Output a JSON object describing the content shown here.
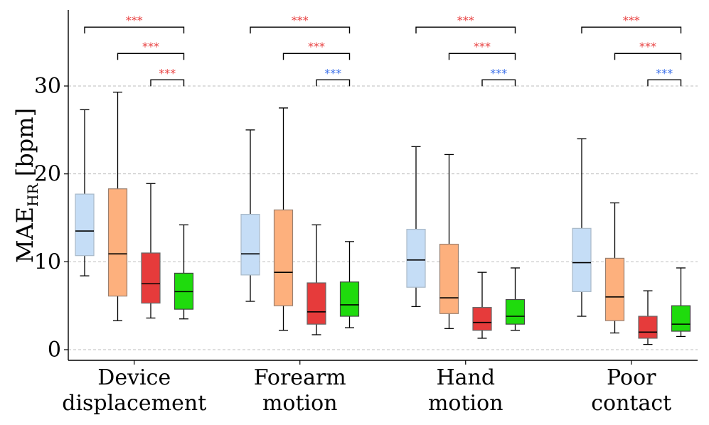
{
  "chart_data": {
    "type": "boxplot",
    "ylabel": {
      "main": "MAE",
      "sub": "HR",
      "unit": "[bpm]"
    },
    "ylim": [
      -1.2,
      38.5
    ],
    "yticks": [
      0,
      10,
      20,
      30
    ],
    "grid": true,
    "categories": [
      {
        "lines": [
          "Device",
          "displacement"
        ]
      },
      {
        "lines": [
          "Forearm",
          "motion"
        ]
      },
      {
        "lines": [
          "Hand",
          "motion"
        ]
      },
      {
        "lines": [
          "Poor",
          "contact"
        ]
      }
    ],
    "series_colors": [
      "#c5ddf6",
      "#fdb07d",
      "#e63b3b",
      "#1fdb0d"
    ],
    "series_edge_colors": [
      "#a9b9c8",
      "#9a8070",
      "#666666",
      "#444444"
    ],
    "boxes": [
      [
        {
          "whislo": 8.4,
          "q1": 10.7,
          "med": 13.5,
          "q3": 17.7,
          "whishi": 27.3
        },
        {
          "whislo": 3.3,
          "q1": 6.1,
          "med": 10.9,
          "q3": 18.3,
          "whishi": 29.3
        },
        {
          "whislo": 3.6,
          "q1": 5.3,
          "med": 7.5,
          "q3": 11.0,
          "whishi": 18.9
        },
        {
          "whislo": 3.5,
          "q1": 4.6,
          "med": 6.6,
          "q3": 8.7,
          "whishi": 14.2
        }
      ],
      [
        {
          "whislo": 5.5,
          "q1": 8.5,
          "med": 10.9,
          "q3": 15.4,
          "whishi": 25.0
        },
        {
          "whislo": 2.2,
          "q1": 5.0,
          "med": 8.8,
          "q3": 15.9,
          "whishi": 27.5
        },
        {
          "whislo": 1.7,
          "q1": 2.9,
          "med": 4.3,
          "q3": 7.6,
          "whishi": 14.2
        },
        {
          "whislo": 2.5,
          "q1": 3.8,
          "med": 5.1,
          "q3": 7.7,
          "whishi": 12.3
        }
      ],
      [
        {
          "whislo": 4.9,
          "q1": 7.1,
          "med": 10.2,
          "q3": 13.7,
          "whishi": 23.1
        },
        {
          "whislo": 2.4,
          "q1": 4.1,
          "med": 5.9,
          "q3": 12.0,
          "whishi": 22.2
        },
        {
          "whislo": 1.3,
          "q1": 2.2,
          "med": 3.1,
          "q3": 4.8,
          "whishi": 8.8
        },
        {
          "whislo": 2.2,
          "q1": 2.9,
          "med": 3.8,
          "q3": 5.7,
          "whishi": 9.3
        }
      ],
      [
        {
          "whislo": 3.8,
          "q1": 6.6,
          "med": 9.9,
          "q3": 13.8,
          "whishi": 24.0
        },
        {
          "whislo": 1.9,
          "q1": 3.3,
          "med": 6.0,
          "q3": 10.4,
          "whishi": 16.7
        },
        {
          "whislo": 0.6,
          "q1": 1.3,
          "med": 2.0,
          "q3": 3.8,
          "whishi": 6.7
        },
        {
          "whislo": 1.5,
          "q1": 2.1,
          "med": 2.9,
          "q3": 5.0,
          "whishi": 9.3
        }
      ]
    ],
    "significance": [
      [
        {
          "from": 0,
          "to": 3,
          "label": "***",
          "color": "#e84040"
        },
        {
          "from": 1,
          "to": 3,
          "label": "***",
          "color": "#e84040"
        },
        {
          "from": 2,
          "to": 3,
          "label": "***",
          "color": "#e84040"
        }
      ],
      [
        {
          "from": 0,
          "to": 3,
          "label": "***",
          "color": "#e84040"
        },
        {
          "from": 1,
          "to": 3,
          "label": "***",
          "color": "#e84040"
        },
        {
          "from": 2,
          "to": 3,
          "label": "***",
          "color": "#3b6fe8"
        }
      ],
      [
        {
          "from": 0,
          "to": 3,
          "label": "***",
          "color": "#e84040"
        },
        {
          "from": 1,
          "to": 3,
          "label": "***",
          "color": "#e84040"
        },
        {
          "from": 2,
          "to": 3,
          "label": "***",
          "color": "#3b6fe8"
        }
      ],
      [
        {
          "from": 0,
          "to": 3,
          "label": "***",
          "color": "#e84040"
        },
        {
          "from": 1,
          "to": 3,
          "label": "***",
          "color": "#e84040"
        },
        {
          "from": 2,
          "to": 3,
          "label": "***",
          "color": "#3b6fe8"
        }
      ]
    ],
    "significance_levels": [
      36.7,
      33.7,
      30.7
    ]
  }
}
